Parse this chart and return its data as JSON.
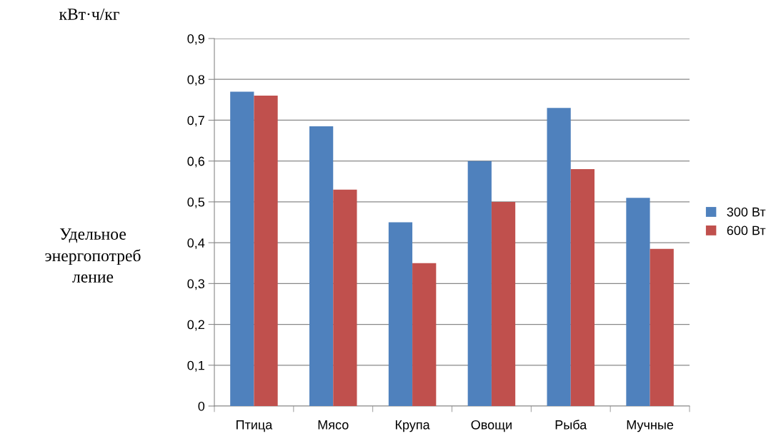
{
  "chart_data": {
    "type": "bar",
    "ylabel": "Удельное\nэнергопотреб\nление",
    "annotations": [
      "кВт·ч/кг"
    ],
    "categories": [
      "Птица",
      "Мясо",
      "Крупа",
      "Овощи",
      "Рыба",
      "Мучные"
    ],
    "series": [
      {
        "name": "300 Вт",
        "color": "#4f81bd",
        "values": [
          0.77,
          0.685,
          0.45,
          0.6,
          0.73,
          0.51
        ]
      },
      {
        "name": "600 Вт",
        "color": "#c0504d",
        "values": [
          0.76,
          0.53,
          0.35,
          0.5,
          0.58,
          0.385
        ]
      }
    ],
    "ylim": [
      0,
      0.9
    ],
    "yticks": [
      {
        "value": 0,
        "label": "0"
      },
      {
        "value": 0.1,
        "label": "0,1"
      },
      {
        "value": 0.2,
        "label": "0,2"
      },
      {
        "value": 0.3,
        "label": "0,3"
      },
      {
        "value": 0.4,
        "label": "0,4"
      },
      {
        "value": 0.5,
        "label": "0,5"
      },
      {
        "value": 0.6,
        "label": "0,6"
      },
      {
        "value": 0.7,
        "label": "0,7"
      },
      {
        "value": 0.8,
        "label": "0,8"
      },
      {
        "value": 0.9,
        "label": "0,9"
      }
    ],
    "grid": "y",
    "legend": "right"
  }
}
